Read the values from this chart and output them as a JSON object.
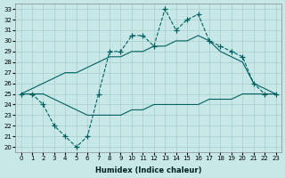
{
  "xlabel": "Humidex (Indice chaleur)",
  "xlim": [
    -0.5,
    23.5
  ],
  "ylim": [
    19.5,
    33.5
  ],
  "yticks": [
    20,
    21,
    22,
    23,
    24,
    25,
    26,
    27,
    28,
    29,
    30,
    31,
    32,
    33
  ],
  "xticks": [
    0,
    1,
    2,
    3,
    4,
    5,
    6,
    7,
    8,
    9,
    10,
    11,
    12,
    13,
    14,
    15,
    16,
    17,
    18,
    19,
    20,
    21,
    22,
    23
  ],
  "background_color": "#c8e8e8",
  "grid_color": "#a8cccc",
  "line_color": "#006060",
  "hours": [
    0,
    1,
    2,
    3,
    4,
    5,
    6,
    7,
    8,
    9,
    10,
    11,
    12,
    13,
    14,
    15,
    16,
    17,
    18,
    19,
    20,
    21,
    22,
    23
  ],
  "line1": [
    25,
    25,
    24,
    22,
    21,
    20,
    21,
    25,
    29,
    29,
    30.5,
    30.5,
    29.5,
    33,
    31,
    32,
    32.5,
    30,
    29.5,
    29,
    28.5,
    26,
    25,
    25
  ],
  "line2": [
    25,
    25.5,
    26,
    26.5,
    27,
    27,
    27.5,
    28,
    28.5,
    28.5,
    29,
    29,
    29.5,
    29.5,
    30,
    30,
    30.5,
    30,
    29,
    28.5,
    28,
    26,
    25.5,
    25
  ],
  "line3": [
    25,
    25,
    25,
    24.5,
    24,
    23.5,
    23,
    23,
    23,
    23,
    23.5,
    23.5,
    24,
    24,
    24,
    24,
    24,
    24.5,
    24.5,
    24.5,
    25,
    25,
    25,
    25
  ]
}
